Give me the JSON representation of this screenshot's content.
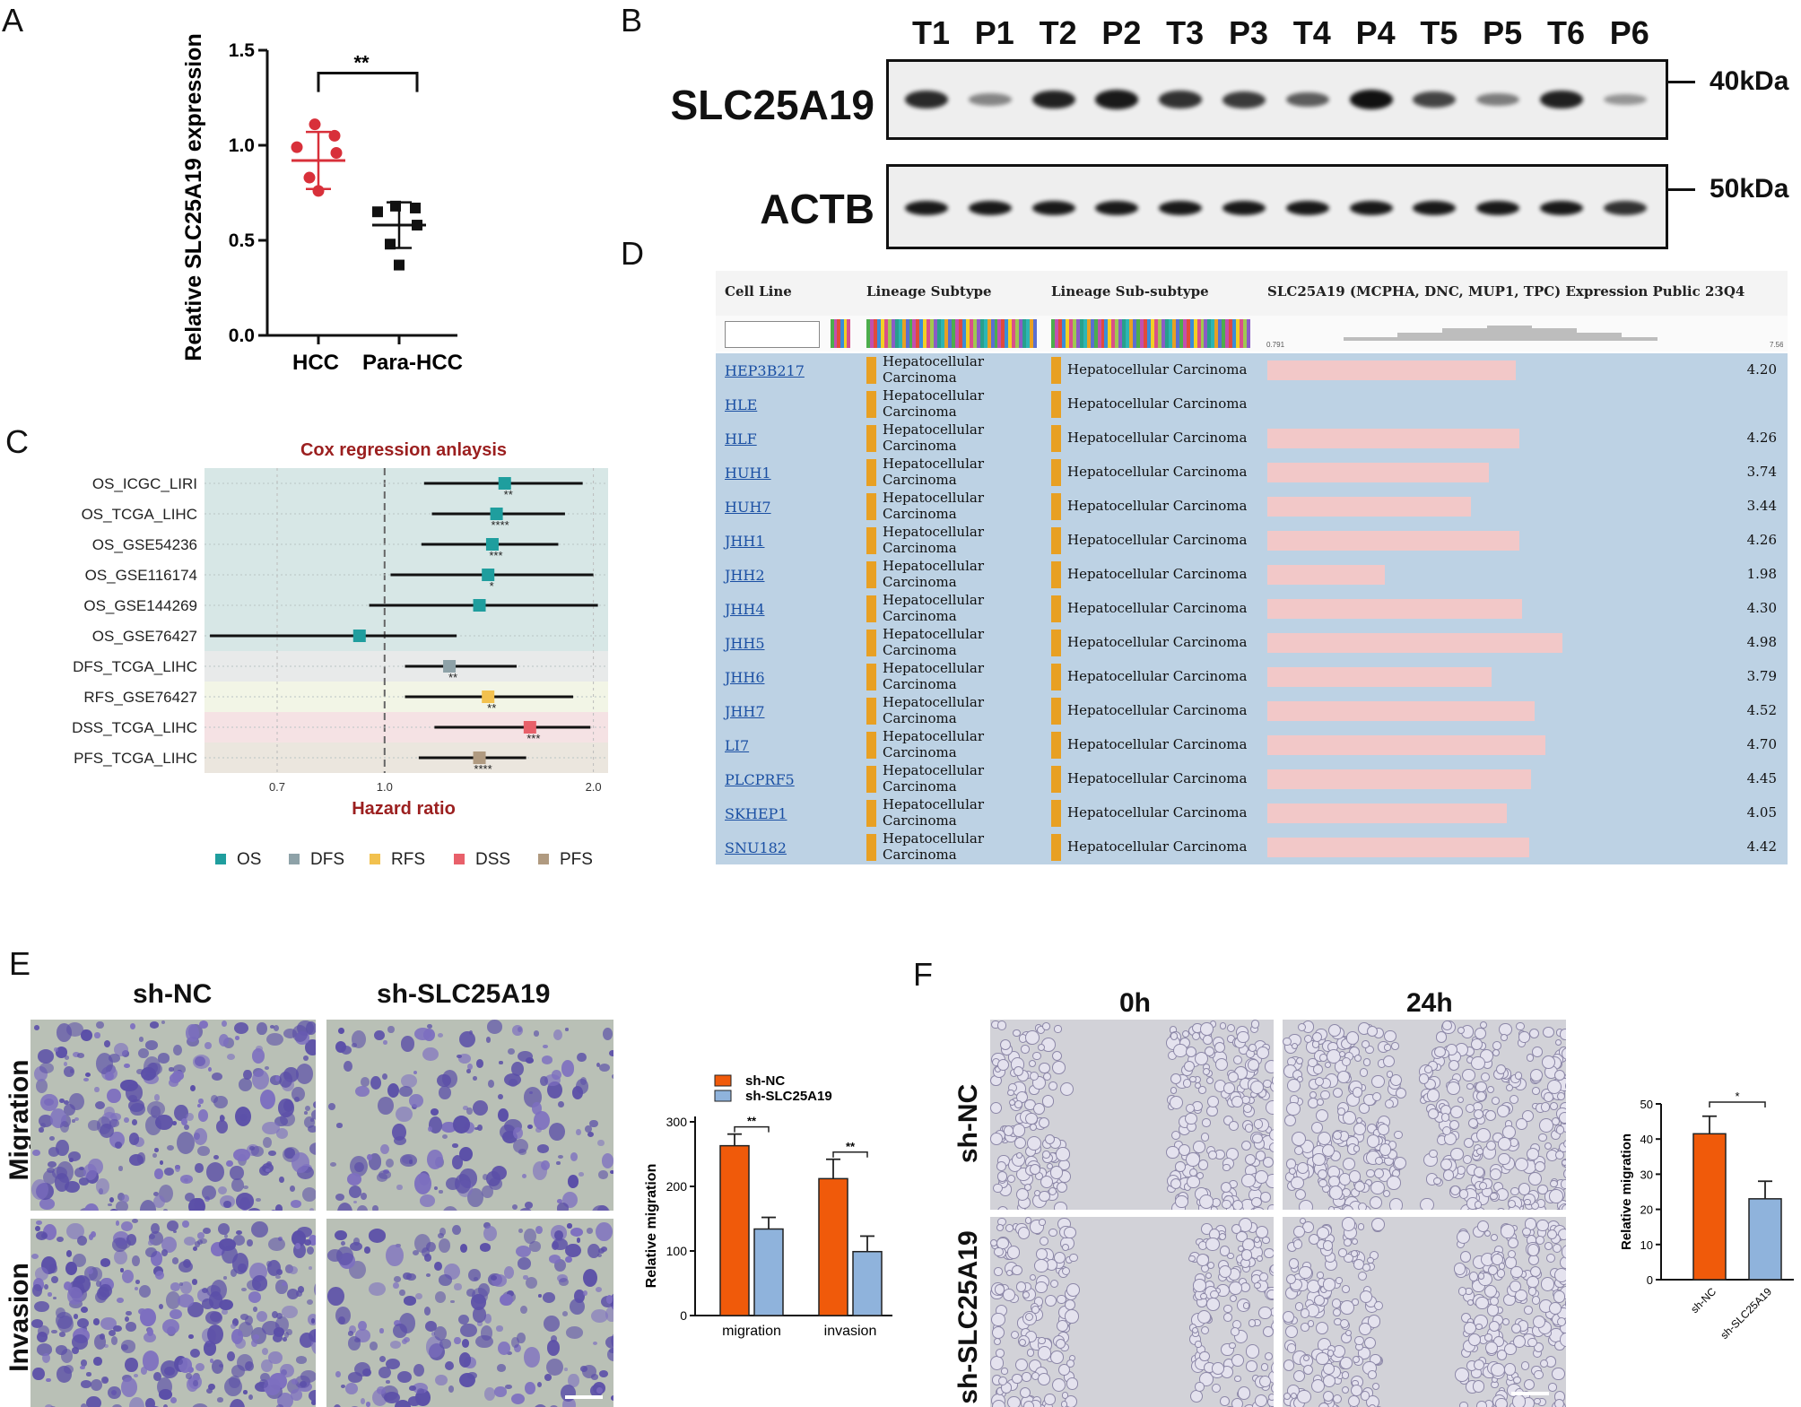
{
  "panels": {
    "a": "A",
    "b": "B",
    "c": "C",
    "d": "D",
    "e": "E",
    "f": "F"
  },
  "panelA": {
    "ylabel": "Relative SLC25A19 expression",
    "yticks": [
      "0.0",
      "0.5",
      "1.0",
      "1.5"
    ],
    "categories": [
      "HCC",
      "Para-HCC"
    ],
    "significance": "**",
    "colors": {
      "HCC": "#d8303a",
      "Para-HCC": "#111111"
    }
  },
  "panelB": {
    "lanes": [
      "T1",
      "P1",
      "T2",
      "P2",
      "T3",
      "P3",
      "T4",
      "P4",
      "T5",
      "P5",
      "T6",
      "P6"
    ],
    "blots": [
      {
        "name": "SLC25A19",
        "marker": "40kDa"
      },
      {
        "name": "ACTB",
        "marker": "50kDa"
      }
    ],
    "band_intensity": {
      "SLC25A19": [
        0.85,
        0.3,
        0.9,
        0.95,
        0.8,
        0.75,
        0.55,
        1.0,
        0.7,
        0.35,
        0.9,
        0.2
      ],
      "ACTB": [
        0.95,
        0.95,
        0.95,
        0.95,
        0.95,
        0.95,
        0.95,
        0.95,
        0.95,
        0.95,
        0.95,
        0.8
      ]
    }
  },
  "panelC": {
    "title": "Cox regression anlaysis",
    "xlabel": "Hazard ratio",
    "xticks": [
      "0.7",
      "1.0",
      "2.0"
    ],
    "rows": [
      {
        "label": "OS_ICGC_LIRI",
        "group": "OS",
        "sig": "**"
      },
      {
        "label": "OS_TCGA_LIHC",
        "group": "OS",
        "sig": "****"
      },
      {
        "label": "OS_GSE54236",
        "group": "OS",
        "sig": "***"
      },
      {
        "label": "OS_GSE116174",
        "group": "OS",
        "sig": "*"
      },
      {
        "label": "OS_GSE144269",
        "group": "OS",
        "sig": ""
      },
      {
        "label": "OS_GSE76427",
        "group": "OS",
        "sig": ""
      },
      {
        "label": "DFS_TCGA_LIHC",
        "group": "DFS",
        "sig": "**"
      },
      {
        "label": "RFS_GSE76427",
        "group": "RFS",
        "sig": "**"
      },
      {
        "label": "DSS_TCGA_LIHC",
        "group": "DSS",
        "sig": "***"
      },
      {
        "label": "PFS_TCGA_LIHC",
        "group": "PFS",
        "sig": "****"
      }
    ],
    "legend": [
      {
        "name": "OS",
        "color": "#1f9e9e"
      },
      {
        "name": "DFS",
        "color": "#8ea2a8"
      },
      {
        "name": "RFS",
        "color": "#f2c14e"
      },
      {
        "name": "DSS",
        "color": "#e8606a"
      },
      {
        "name": "PFS",
        "color": "#b09a80"
      }
    ]
  },
  "panelD": {
    "headers": [
      "Cell Line",
      "Lineage Subtype",
      "Lineage Sub-subtype",
      "SLC25A19 (MCPHA, DNC, MUP1, TPC) Expression Public 23Q4"
    ],
    "range_min": "0.791",
    "range_max": "7.56",
    "lineage": "Hepatocellular Carcinoma",
    "lineage_line1": "Hepatocellular",
    "lineage_line2": "Carcinoma",
    "rows": [
      {
        "cell": "HEP3B217",
        "value": "4.20"
      },
      {
        "cell": "HLE",
        "value": ""
      },
      {
        "cell": "HLF",
        "value": "4.26"
      },
      {
        "cell": "HUH1",
        "value": "3.74"
      },
      {
        "cell": "HUH7",
        "value": "3.44"
      },
      {
        "cell": "JHH1",
        "value": "4.26"
      },
      {
        "cell": "JHH2",
        "value": "1.98"
      },
      {
        "cell": "JHH4",
        "value": "4.30"
      },
      {
        "cell": "JHH5",
        "value": "4.98"
      },
      {
        "cell": "JHH6",
        "value": "3.79"
      },
      {
        "cell": "JHH7",
        "value": "4.52"
      },
      {
        "cell": "LI7",
        "value": "4.70"
      },
      {
        "cell": "PLCPRF5",
        "value": "4.45"
      },
      {
        "cell": "SKHEP1",
        "value": "4.05"
      },
      {
        "cell": "SNU182",
        "value": "4.42"
      }
    ]
  },
  "panelE": {
    "col_labels": [
      "sh-NC",
      "sh-SLC25A19"
    ],
    "row_labels": [
      "Migration",
      "Invasion"
    ],
    "ylabel": "Relative migration",
    "yticks": [
      "0",
      "100",
      "200",
      "300"
    ],
    "categories": [
      "migration",
      "invasion"
    ],
    "legend": [
      {
        "name": "sh-NC",
        "color": "#f05a0a"
      },
      {
        "name": "sh-SLC25A19",
        "color": "#8fb3dc"
      }
    ],
    "significance": [
      "**",
      "**"
    ]
  },
  "panelF": {
    "col_labels": [
      "0h",
      "24h"
    ],
    "row_labels": [
      "sh-NC",
      "sh-SLC25A19"
    ],
    "ylabel": "Relative migration",
    "yticks": [
      "0",
      "10",
      "20",
      "30",
      "40",
      "50"
    ],
    "categories": [
      "sh-NC",
      "sh-SLC25A19"
    ],
    "significance": "*"
  },
  "chart_data": [
    {
      "type": "scatter",
      "ylabel": "Relative SLC25A19 expression",
      "categories": [
        "HCC",
        "Para-HCC"
      ],
      "ylim": [
        0,
        1.5
      ],
      "series": [
        {
          "name": "HCC",
          "values": [
            1.11,
            1.05,
            0.99,
            0.96,
            0.83,
            0.76
          ],
          "mean": 0.92,
          "sd": 0.15
        },
        {
          "name": "Para-HCC",
          "values": [
            0.68,
            0.67,
            0.65,
            0.58,
            0.48,
            0.37
          ],
          "mean": 0.58,
          "sd": 0.12
        }
      ]
    },
    {
      "type": "scatter",
      "title": "Cox regression anlaysis",
      "xlabel": "Hazard ratio",
      "x_scale": "log",
      "xlim": [
        0.55,
        2.1
      ],
      "categories": [
        "OS_ICGC_LIRI",
        "OS_TCGA_LIHC",
        "OS_GSE54236",
        "OS_GSE116174",
        "OS_GSE144269",
        "OS_GSE76427",
        "DFS_TCGA_LIHC",
        "RFS_GSE76427",
        "DSS_TCGA_LIHC",
        "PFS_TCGA_LIHC"
      ],
      "hr": [
        1.49,
        1.45,
        1.43,
        1.41,
        1.37,
        0.92,
        1.24,
        1.41,
        1.62,
        1.37
      ],
      "lower": [
        1.14,
        1.17,
        1.13,
        1.02,
        0.95,
        0.56,
        1.07,
        1.07,
        1.18,
        1.12
      ],
      "upper": [
        1.93,
        1.82,
        1.78,
        2.0,
        2.03,
        1.27,
        1.55,
        1.87,
        1.98,
        1.6
      ]
    },
    {
      "type": "bar",
      "ylabel": "Relative migration",
      "categories": [
        "migration",
        "invasion"
      ],
      "ylim": [
        0,
        300
      ],
      "series": [
        {
          "name": "sh-NC",
          "values": [
            263,
            212
          ],
          "error": [
            18,
            30
          ]
        },
        {
          "name": "sh-SLC25A19",
          "values": [
            134,
            99
          ],
          "error": [
            18,
            24
          ]
        }
      ]
    },
    {
      "type": "bar",
      "ylabel": "Relative migration",
      "categories": [
        "sh-NC",
        "sh-SLC25A19"
      ],
      "ylim": [
        0,
        50
      ],
      "values": [
        41.5,
        23
      ],
      "error": [
        5,
        5
      ]
    }
  ]
}
